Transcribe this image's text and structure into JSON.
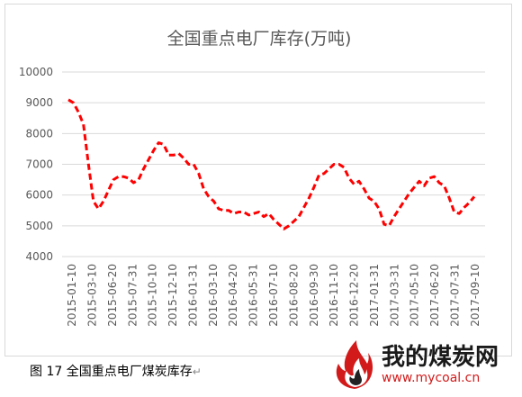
{
  "chart_data": {
    "type": "line",
    "title": "全国重点电厂库存(万吨)",
    "xlabel": "",
    "ylabel": "",
    "ylim": [
      4000,
      10000
    ],
    "yticks": [
      4000,
      5000,
      6000,
      7000,
      8000,
      9000,
      10000
    ],
    "xtick_labels": [
      "2015-01-10",
      "2015-03-10",
      "2015-06-20",
      "2015-07-31",
      "2015-10-10",
      "2015-12-10",
      "2016-01-31",
      "2016-03-10",
      "2016-04-20",
      "2016-05-31",
      "2016-07-10",
      "2016-08-20",
      "2016-09-30",
      "2016-11-10",
      "2016-12-20",
      "2017-01-31",
      "2017-03-31",
      "2017-05-10",
      "2017-06-20",
      "2017-07-31",
      "2017-09-10"
    ],
    "grid": true,
    "legend": "none",
    "line_color": "#ff0000",
    "line_style": "dashed",
    "series": [
      {
        "values": [
          9100,
          9000,
          8700,
          8300,
          7000,
          5800,
          5550,
          5800,
          6150,
          6500,
          6600,
          6600,
          6550,
          6400,
          6500,
          6850,
          7150,
          7450,
          7700,
          7650,
          7300,
          7300,
          7350,
          7200,
          7000,
          7000,
          6700,
          6200,
          5950,
          5800,
          5550,
          5500,
          5500,
          5400,
          5450,
          5450,
          5350,
          5400,
          5450,
          5300,
          5400,
          5200,
          5050,
          4900,
          5000,
          5150,
          5300,
          5600,
          5900,
          6250,
          6650,
          6700,
          6850,
          7000,
          7000,
          6900,
          6550,
          6350,
          6450,
          6200,
          5900,
          5800,
          5550,
          5050,
          5000,
          5300,
          5550,
          5800,
          6050,
          6250,
          6450,
          6300,
          6550,
          6600,
          6400,
          6300,
          5900,
          5450,
          5400,
          5600,
          5750,
          5950
        ]
      }
    ]
  },
  "caption": {
    "text": "图 17  全国重点电厂煤炭库存",
    "mark": "↵"
  },
  "logo": {
    "brand": "我的煤炭网",
    "url": "www.mycoal.cn",
    "icon": "flame-icon"
  }
}
